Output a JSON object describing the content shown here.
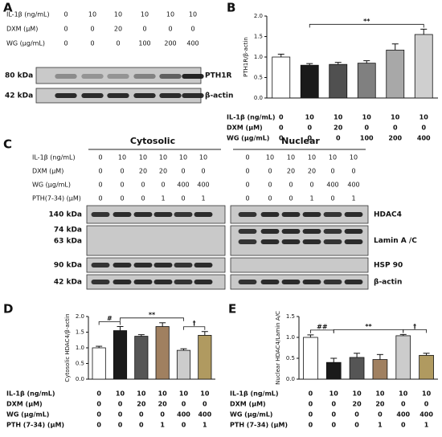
{
  "panel_labels": [
    "A",
    "B",
    "C",
    "D",
    "E"
  ],
  "blot_a": {
    "treatments": [
      {
        "name": "IL-1β (ng/mL)",
        "values": [
          0,
          10,
          10,
          10,
          10,
          10
        ]
      },
      {
        "name": "DXM (μM)",
        "values": [
          0,
          0,
          20,
          0,
          0,
          0
        ]
      },
      {
        "name": "WG (μg/mL)",
        "values": [
          0,
          0,
          0,
          100,
          200,
          400
        ]
      }
    ],
    "bands": [
      {
        "kda": [
          "80 kDa"
        ],
        "protein": "PTH1R"
      },
      {
        "kda": [
          "42 kDa"
        ],
        "protein": "β-actin"
      }
    ]
  },
  "blot_c": {
    "fractions": [
      "Cytosolic",
      "Nuclear"
    ],
    "treatments": [
      {
        "name": "IL-1β (ng/mL)",
        "values": [
          0,
          10,
          10,
          10,
          10,
          10
        ]
      },
      {
        "name": "DXM (μM)",
        "values": [
          0,
          0,
          20,
          20,
          0,
          0
        ]
      },
      {
        "name": "WG (μg/mL)",
        "values": [
          0,
          0,
          0,
          0,
          400,
          400
        ]
      },
      {
        "name": "PTH(7-34) (μM)",
        "values": [
          0,
          0,
          0,
          1,
          0,
          1
        ]
      }
    ],
    "bands": [
      {
        "kda": [
          "140 kDa"
        ],
        "protein": "HDAC4"
      },
      {
        "kda": [
          "74 kDa",
          "63 kDa"
        ],
        "protein": "Lamin A /C"
      },
      {
        "kda": [
          "90 kDa"
        ],
        "protein": "HSP 90"
      },
      {
        "kda": [
          "42 kDa"
        ],
        "protein": "β-actin"
      }
    ]
  },
  "chart_data": [
    {
      "type": "bar",
      "y_label": "PTH1R/β-actin",
      "values": [
        1.0,
        0.8,
        0.82,
        0.85,
        1.17,
        1.55
      ],
      "errors": [
        0.07,
        0.04,
        0.05,
        0.06,
        0.15,
        0.13
      ],
      "colors": [
        "#ffffff",
        "#1a1a1a",
        "#505050",
        "#808080",
        "#a8a8a8",
        "#cfcfcf"
      ],
      "ylim": [
        0,
        2.0
      ],
      "yticks": [
        {
          "value": 0,
          "label": "0.0"
        },
        {
          "value": 0.5,
          "label": "0.5"
        },
        {
          "value": 1.0,
          "label": "1.0"
        },
        {
          "value": 1.5,
          "label": "1.5"
        },
        {
          "value": 2.0,
          "label": "2.0"
        }
      ],
      "annotations": [
        {
          "label": "**",
          "between": [
            1,
            5
          ]
        }
      ],
      "treatments": [
        {
          "name": "IL-1β (ng/mL)",
          "values": [
            0,
            10,
            10,
            10,
            10,
            10
          ]
        },
        {
          "name": "DXM (μM)",
          "values": [
            0,
            0,
            20,
            0,
            0,
            0
          ]
        },
        {
          "name": "WG (μg/mL)",
          "values": [
            0,
            0,
            0,
            100,
            200,
            400
          ]
        }
      ]
    },
    {
      "type": "bar",
      "y_label": "Cytosolic HDAC4/β-actin",
      "values": [
        1.0,
        1.55,
        1.37,
        1.68,
        0.92,
        1.4
      ],
      "errors": [
        0.05,
        0.13,
        0.05,
        0.12,
        0.05,
        0.12
      ],
      "colors": [
        "#ffffff",
        "#1a1a1a",
        "#555555",
        "#a08060",
        "#cccccc",
        "#b09a60"
      ],
      "ylim": [
        0,
        2.0
      ],
      "yticks": [
        {
          "value": 0,
          "label": "0.0"
        },
        {
          "value": 0.5,
          "label": "0.5"
        },
        {
          "value": 1.0,
          "label": "1.0"
        },
        {
          "value": 1.5,
          "label": "1.5"
        },
        {
          "value": 2.0,
          "label": "2.0"
        }
      ],
      "annotations": [
        {
          "label": "#",
          "between": [
            0,
            1
          ]
        },
        {
          "label": "**",
          "between": [
            1,
            4
          ]
        },
        {
          "label": "†",
          "between": [
            4,
            5
          ]
        }
      ],
      "treatments": [
        {
          "name": "IL-1β (ng/mL)",
          "values": [
            0,
            10,
            10,
            10,
            10,
            10
          ]
        },
        {
          "name": "DXM (μM)",
          "values": [
            0,
            0,
            20,
            20,
            0,
            0
          ]
        },
        {
          "name": "WG (μg/mL)",
          "values": [
            0,
            0,
            0,
            0,
            400,
            400
          ]
        },
        {
          "name": "PTH (7-34) (μM)",
          "values": [
            0,
            0,
            0,
            1,
            0,
            1
          ]
        }
      ]
    },
    {
      "type": "bar",
      "y_label": "Nuclear HDAC4/Lamin A/C",
      "values": [
        1.0,
        0.4,
        0.52,
        0.47,
        1.04,
        0.57
      ],
      "errors": [
        0.06,
        0.1,
        0.1,
        0.12,
        0.03,
        0.05
      ],
      "colors": [
        "#ffffff",
        "#1a1a1a",
        "#555555",
        "#a08060",
        "#cccccc",
        "#b09a60"
      ],
      "ylim": [
        0,
        1.5
      ],
      "yticks": [
        {
          "value": 0,
          "label": "0.0"
        },
        {
          "value": 0.5,
          "label": "0.5"
        },
        {
          "value": 1.0,
          "label": "1.0"
        },
        {
          "value": 1.5,
          "label": "1.5"
        }
      ],
      "annotations": [
        {
          "label": "##",
          "between": [
            0,
            1
          ]
        },
        {
          "label": "**",
          "between": [
            1,
            4
          ]
        },
        {
          "label": "†",
          "between": [
            4,
            5
          ]
        }
      ],
      "treatments": [
        {
          "name": "IL-1β (ng/mL)",
          "values": [
            0,
            10,
            10,
            10,
            10,
            10
          ]
        },
        {
          "name": "DXM (μM)",
          "values": [
            0,
            0,
            20,
            20,
            0,
            0
          ]
        },
        {
          "name": "WG (μg/mL)",
          "values": [
            0,
            0,
            0,
            0,
            400,
            400
          ]
        },
        {
          "name": "PTH (7-34) (μM)",
          "values": [
            0,
            0,
            0,
            1,
            0,
            1
          ]
        }
      ]
    }
  ]
}
